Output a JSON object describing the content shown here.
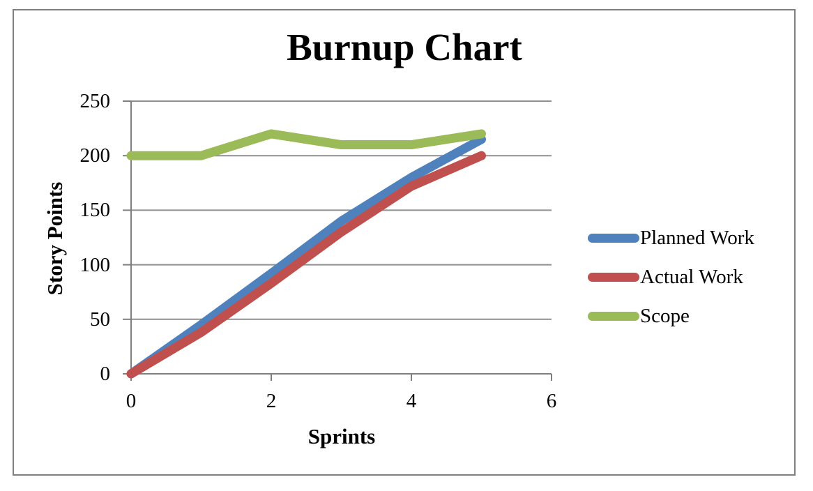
{
  "window": {
    "background": "#ffffff",
    "border_color": "#7f7f7f"
  },
  "chart_data": {
    "type": "line",
    "title": "Burnup Chart",
    "xlabel": "Sprints",
    "ylabel": "Story Points",
    "x": [
      0,
      1,
      2,
      3,
      4,
      5
    ],
    "series": [
      {
        "name": "Planned Work",
        "color": "#4F81BD",
        "values": [
          0,
          45,
          92,
          140,
          180,
          215
        ]
      },
      {
        "name": "Actual Work",
        "color": "#C0504D",
        "values": [
          0,
          38,
          83,
          130,
          172,
          200
        ]
      },
      {
        "name": "Scope",
        "color": "#9BBB59",
        "values": [
          200,
          200,
          220,
          210,
          210,
          220
        ]
      }
    ],
    "xlim": [
      0,
      6
    ],
    "ylim": [
      0,
      250
    ],
    "x_ticks": [
      0,
      2,
      4,
      6
    ],
    "y_ticks": [
      0,
      50,
      100,
      150,
      200,
      250
    ],
    "grid": true,
    "legend_position": "right",
    "line_width": 13
  },
  "colors": {
    "gridline": "#8f8f8f",
    "axis": "#7f7f7f",
    "tick": "#7f7f7f",
    "text": "#000000"
  }
}
